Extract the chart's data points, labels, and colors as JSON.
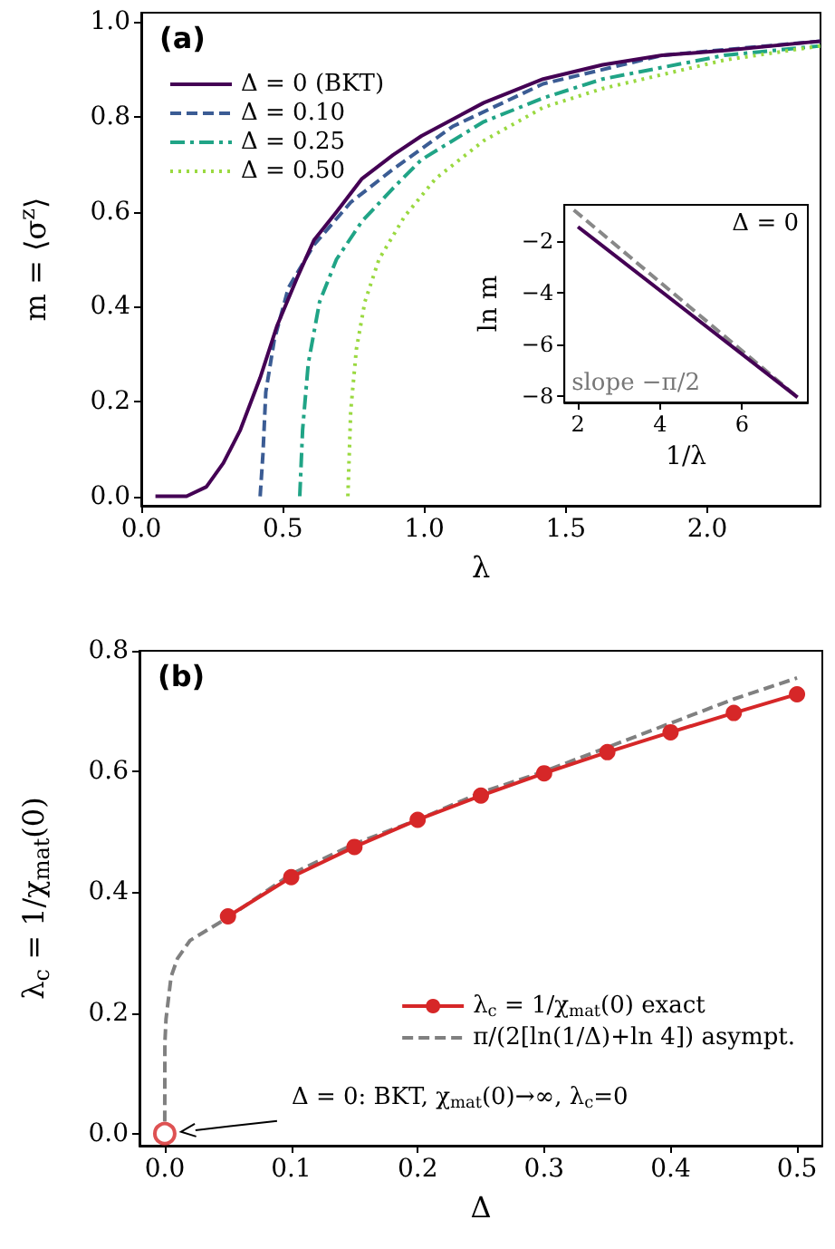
{
  "chart_data": [
    {
      "type": "line",
      "xlabel": "λ",
      "ylabel": "m = ⟨σ$^{z}$⟩",
      "annotations": [
        "(a)"
      ],
      "xlim": [
        0,
        2.4
      ],
      "ylim": [
        -0.02,
        1.02
      ],
      "xticks": [
        {
          "value": 0,
          "label": "0.0"
        },
        {
          "value": 0.5,
          "label": "0.5"
        },
        {
          "value": 1,
          "label": "1.0"
        },
        {
          "value": 1.5,
          "label": "1.5"
        },
        {
          "value": 2,
          "label": "2.0"
        }
      ],
      "yticks": [
        {
          "value": 0,
          "label": "0.0"
        },
        0.2,
        0.4,
        0.6,
        0.8,
        {
          "value": 1,
          "label": "1.0"
        }
      ],
      "legend": "top left",
      "series": [
        {
          "name": "Δ = 0 (BKT)",
          "color": "#440154",
          "line_style": "solid",
          "x": [
            0.05,
            0.16,
            0.23,
            0.29,
            0.35,
            0.42,
            0.48,
            0.55,
            0.61,
            0.69,
            0.78,
            0.89,
            0.99,
            1.21,
            1.42,
            1.63,
            1.84,
            2.06,
            2.4
          ],
          "values": [
            0,
            0,
            0.02,
            0.07,
            0.14,
            0.25,
            0.36,
            0.46,
            0.54,
            0.6,
            0.67,
            0.72,
            0.76,
            0.83,
            0.88,
            0.91,
            0.93,
            0.94,
            0.96
          ]
        },
        {
          "name": "Δ = 0.10",
          "color": "#3b5c94",
          "line_style": "dashed",
          "x": [
            0.42,
            0.43,
            0.44,
            0.47,
            0.52,
            0.61,
            0.74,
            0.89,
            1.1,
            1.42,
            1.84,
            2.4
          ],
          "values": [
            0,
            0.09,
            0.22,
            0.33,
            0.44,
            0.53,
            0.62,
            0.69,
            0.78,
            0.87,
            0.93,
            0.96
          ]
        },
        {
          "name": "Δ = 0.25",
          "color": "#20a486",
          "line_style": "dashdot",
          "x": [
            0.56,
            0.57,
            0.59,
            0.63,
            0.69,
            0.78,
            0.89,
            0.99,
            1.21,
            1.42,
            1.63,
            2.06,
            2.4
          ],
          "values": [
            0,
            0.14,
            0.28,
            0.41,
            0.5,
            0.58,
            0.65,
            0.71,
            0.79,
            0.84,
            0.88,
            0.93,
            0.95
          ]
        },
        {
          "name": "Δ = 0.50",
          "color": "#9ad940",
          "line_style": "dotted",
          "x": [
            0.73,
            0.74,
            0.76,
            0.79,
            0.84,
            0.93,
            1.04,
            1.21,
            1.42,
            1.63,
            2.06,
            2.4
          ],
          "values": [
            0,
            0.18,
            0.31,
            0.41,
            0.5,
            0.59,
            0.67,
            0.75,
            0.82,
            0.86,
            0.92,
            0.95
          ]
        }
      ]
    },
    {
      "type": "line",
      "xlabel": "1/λ",
      "ylabel": "ln m",
      "annotations": [
        "Δ = 0",
        "slope −π/2"
      ],
      "xlim": [
        1.67,
        7.6
      ],
      "ylim": [
        -8.25,
        -0.6
      ],
      "xticks": [
        2,
        4,
        6
      ],
      "yticks": [
        {
          "value": -8,
          "label": "−8"
        },
        {
          "value": -6,
          "label": "−6"
        },
        {
          "value": -4,
          "label": "−4"
        },
        {
          "value": -2,
          "label": "−2"
        }
      ],
      "series": [
        {
          "color": "#440154",
          "line_style": "solid",
          "x": [
            2,
            7.35
          ],
          "values": [
            -1.45,
            -8.05
          ]
        },
        {
          "color": "#888888",
          "line_style": "dashed",
          "x": [
            1.9,
            7.35
          ],
          "values": [
            -0.8,
            -8.05
          ]
        }
      ]
    },
    {
      "type": "line",
      "xlabel": "Δ",
      "ylabel": "λ$_{c}$ = 1/χ$_{mat}$(0)",
      "annotations": [
        "(b)",
        "Δ = 0: BKT, χ$_{mat}$(0)→∞, λ$_{c}$=0"
      ],
      "xlim": [
        -0.02,
        0.52
      ],
      "ylim": [
        -0.02,
        0.8
      ],
      "xticks": [
        {
          "value": 0,
          "label": "0.0"
        },
        0.1,
        0.2,
        0.3,
        0.4,
        0.5
      ],
      "yticks": [
        {
          "value": 0,
          "label": "0.0"
        },
        0.2,
        0.4,
        0.6,
        0.8
      ],
      "legend": "bottom right",
      "series": [
        {
          "name": "λ$_{c}$ = 1/χ$_{mat}$(0) exact",
          "color": "#d62728",
          "line_style": "solid",
          "marker": "circle",
          "x": [
            0.05,
            0.1,
            0.15,
            0.2,
            0.25,
            0.3,
            0.35,
            0.4,
            0.45,
            0.5
          ],
          "values": [
            0.36,
            0.425,
            0.475,
            0.52,
            0.56,
            0.597,
            0.632,
            0.665,
            0.697,
            0.728
          ]
        },
        {
          "name": "π/(2[ln(1/Δ)+ln 4]) asympt.",
          "color": "#808080",
          "line_style": "dashed",
          "x": [
            0,
            0.0001,
            0.001,
            0.005,
            0.01,
            0.02,
            0.05,
            0.1,
            0.15,
            0.2,
            0.25,
            0.3,
            0.35,
            0.4,
            0.45,
            0.5
          ],
          "values": [
            0.02,
            0.15,
            0.19,
            0.26,
            0.29,
            0.32,
            0.358,
            0.43,
            0.48,
            0.52,
            0.565,
            0.6,
            0.64,
            0.68,
            0.72,
            0.755
          ]
        },
        {
          "type": "scatter",
          "color": "#d62728",
          "marker": "circle",
          "x": [
            0
          ],
          "values": [
            0
          ]
        }
      ]
    }
  ]
}
